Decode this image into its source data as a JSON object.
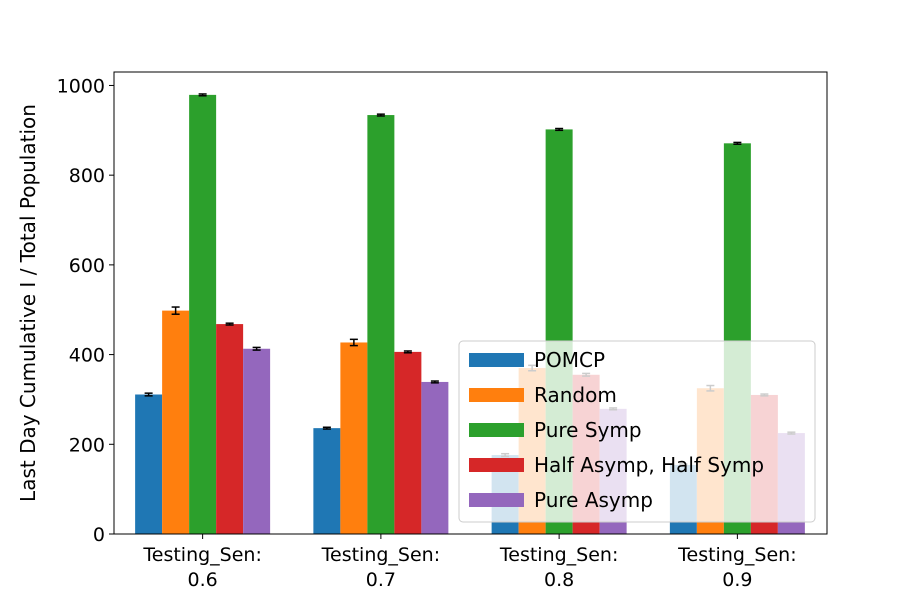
{
  "chart_data": {
    "type": "bar",
    "title": "",
    "xlabel": "",
    "ylabel": "Last Day Cumulative I / Total Population",
    "ylim": [
      0,
      1030
    ],
    "yticks": [
      0,
      200,
      400,
      600,
      800,
      1000
    ],
    "grid": false,
    "legend_position": "lower-right",
    "categories": [
      [
        "Testing_Sen:",
        "0.6"
      ],
      [
        "Testing_Sen:",
        "0.7"
      ],
      [
        "Testing_Sen:",
        "0.8"
      ],
      [
        "Testing_Sen:",
        "0.9"
      ]
    ],
    "series": [
      {
        "name": "POMCP",
        "color": "#1f77b4",
        "values": [
          311,
          236,
          176,
          154
        ],
        "errors": [
          3,
          2,
          3,
          2
        ]
      },
      {
        "name": "Random",
        "color": "#ff7f0e",
        "values": [
          498,
          427,
          370,
          325
        ],
        "errors": [
          8,
          7,
          6,
          6
        ]
      },
      {
        "name": "Pure Symp",
        "color": "#2ca02c",
        "values": [
          979,
          934,
          902,
          871
        ],
        "errors": [
          2,
          2,
          2,
          2
        ]
      },
      {
        "name": "Half Asymp, Half Symp",
        "color": "#d62728",
        "values": [
          468,
          406,
          355,
          310
        ],
        "errors": [
          2,
          2,
          3,
          2
        ]
      },
      {
        "name": "Pure Asymp",
        "color": "#9467bd",
        "values": [
          413,
          339,
          279,
          225
        ],
        "errors": [
          3,
          2,
          2,
          2
        ]
      }
    ]
  }
}
